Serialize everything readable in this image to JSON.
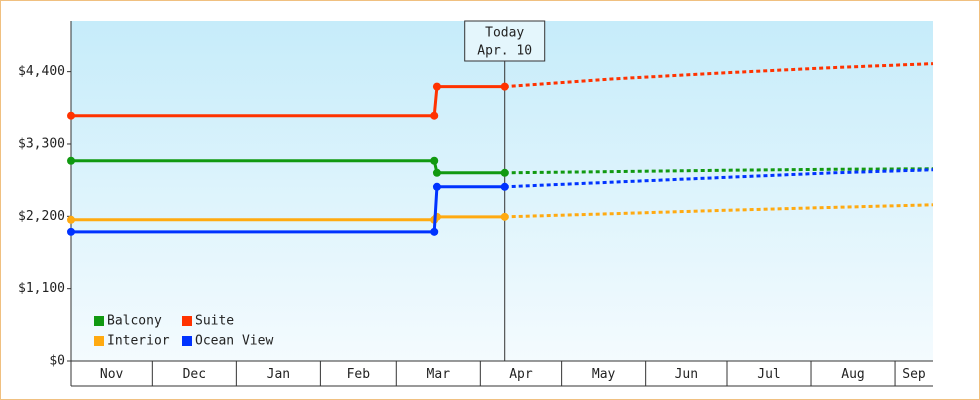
{
  "chart_data": {
    "type": "line",
    "xlim": [
      0,
      318
    ],
    "xticks": [
      {
        "value": 0,
        "label": "Nov"
      },
      {
        "value": 30,
        "label": "Dec"
      },
      {
        "value": 61,
        "label": "Jan"
      },
      {
        "value": 92,
        "label": "Feb"
      },
      {
        "value": 120,
        "label": "Mar"
      },
      {
        "value": 151,
        "label": "Apr"
      },
      {
        "value": 181,
        "label": "May"
      },
      {
        "value": 212,
        "label": "Jun"
      },
      {
        "value": 242,
        "label": "Jul"
      },
      {
        "value": 273,
        "label": "Aug"
      },
      {
        "value": 304,
        "label": "Sep"
      }
    ],
    "ylim": [
      0,
      5170
    ],
    "yticks": [
      {
        "value": 0,
        "label": "$0"
      },
      {
        "value": 1100,
        "label": "$1,100"
      },
      {
        "value": 2200,
        "label": "$2,200"
      },
      {
        "value": 3300,
        "label": "$3,300"
      },
      {
        "value": 4400,
        "label": "$4,400"
      }
    ],
    "x_history": [
      0,
      134,
      135,
      160
    ],
    "x_forecast": [
      160,
      200,
      240,
      280,
      318
    ],
    "series": [
      {
        "name": "Balcony",
        "color": "#119911",
        "values": [
          3045,
          3045,
          2862,
          2862
        ],
        "forecast": [
          2862,
          2880,
          2900,
          2915,
          2923
        ]
      },
      {
        "name": "Suite",
        "color": "#ff3300",
        "values": [
          3730,
          3730,
          4172,
          4172
        ],
        "forecast": [
          4172,
          4290,
          4380,
          4460,
          4522
        ]
      },
      {
        "name": "Interior",
        "color": "#ffaa11",
        "values": [
          2147,
          2147,
          2192,
          2192
        ],
        "forecast": [
          2192,
          2240,
          2290,
          2335,
          2375
        ]
      },
      {
        "name": "Ocean View",
        "color": "#0033ff",
        "values": [
          1964,
          1964,
          2649,
          2649
        ],
        "forecast": [
          2649,
          2720,
          2790,
          2860,
          2908
        ]
      }
    ],
    "annotation": {
      "x": 160,
      "lines": [
        "Today",
        "Apr. 10"
      ]
    }
  }
}
